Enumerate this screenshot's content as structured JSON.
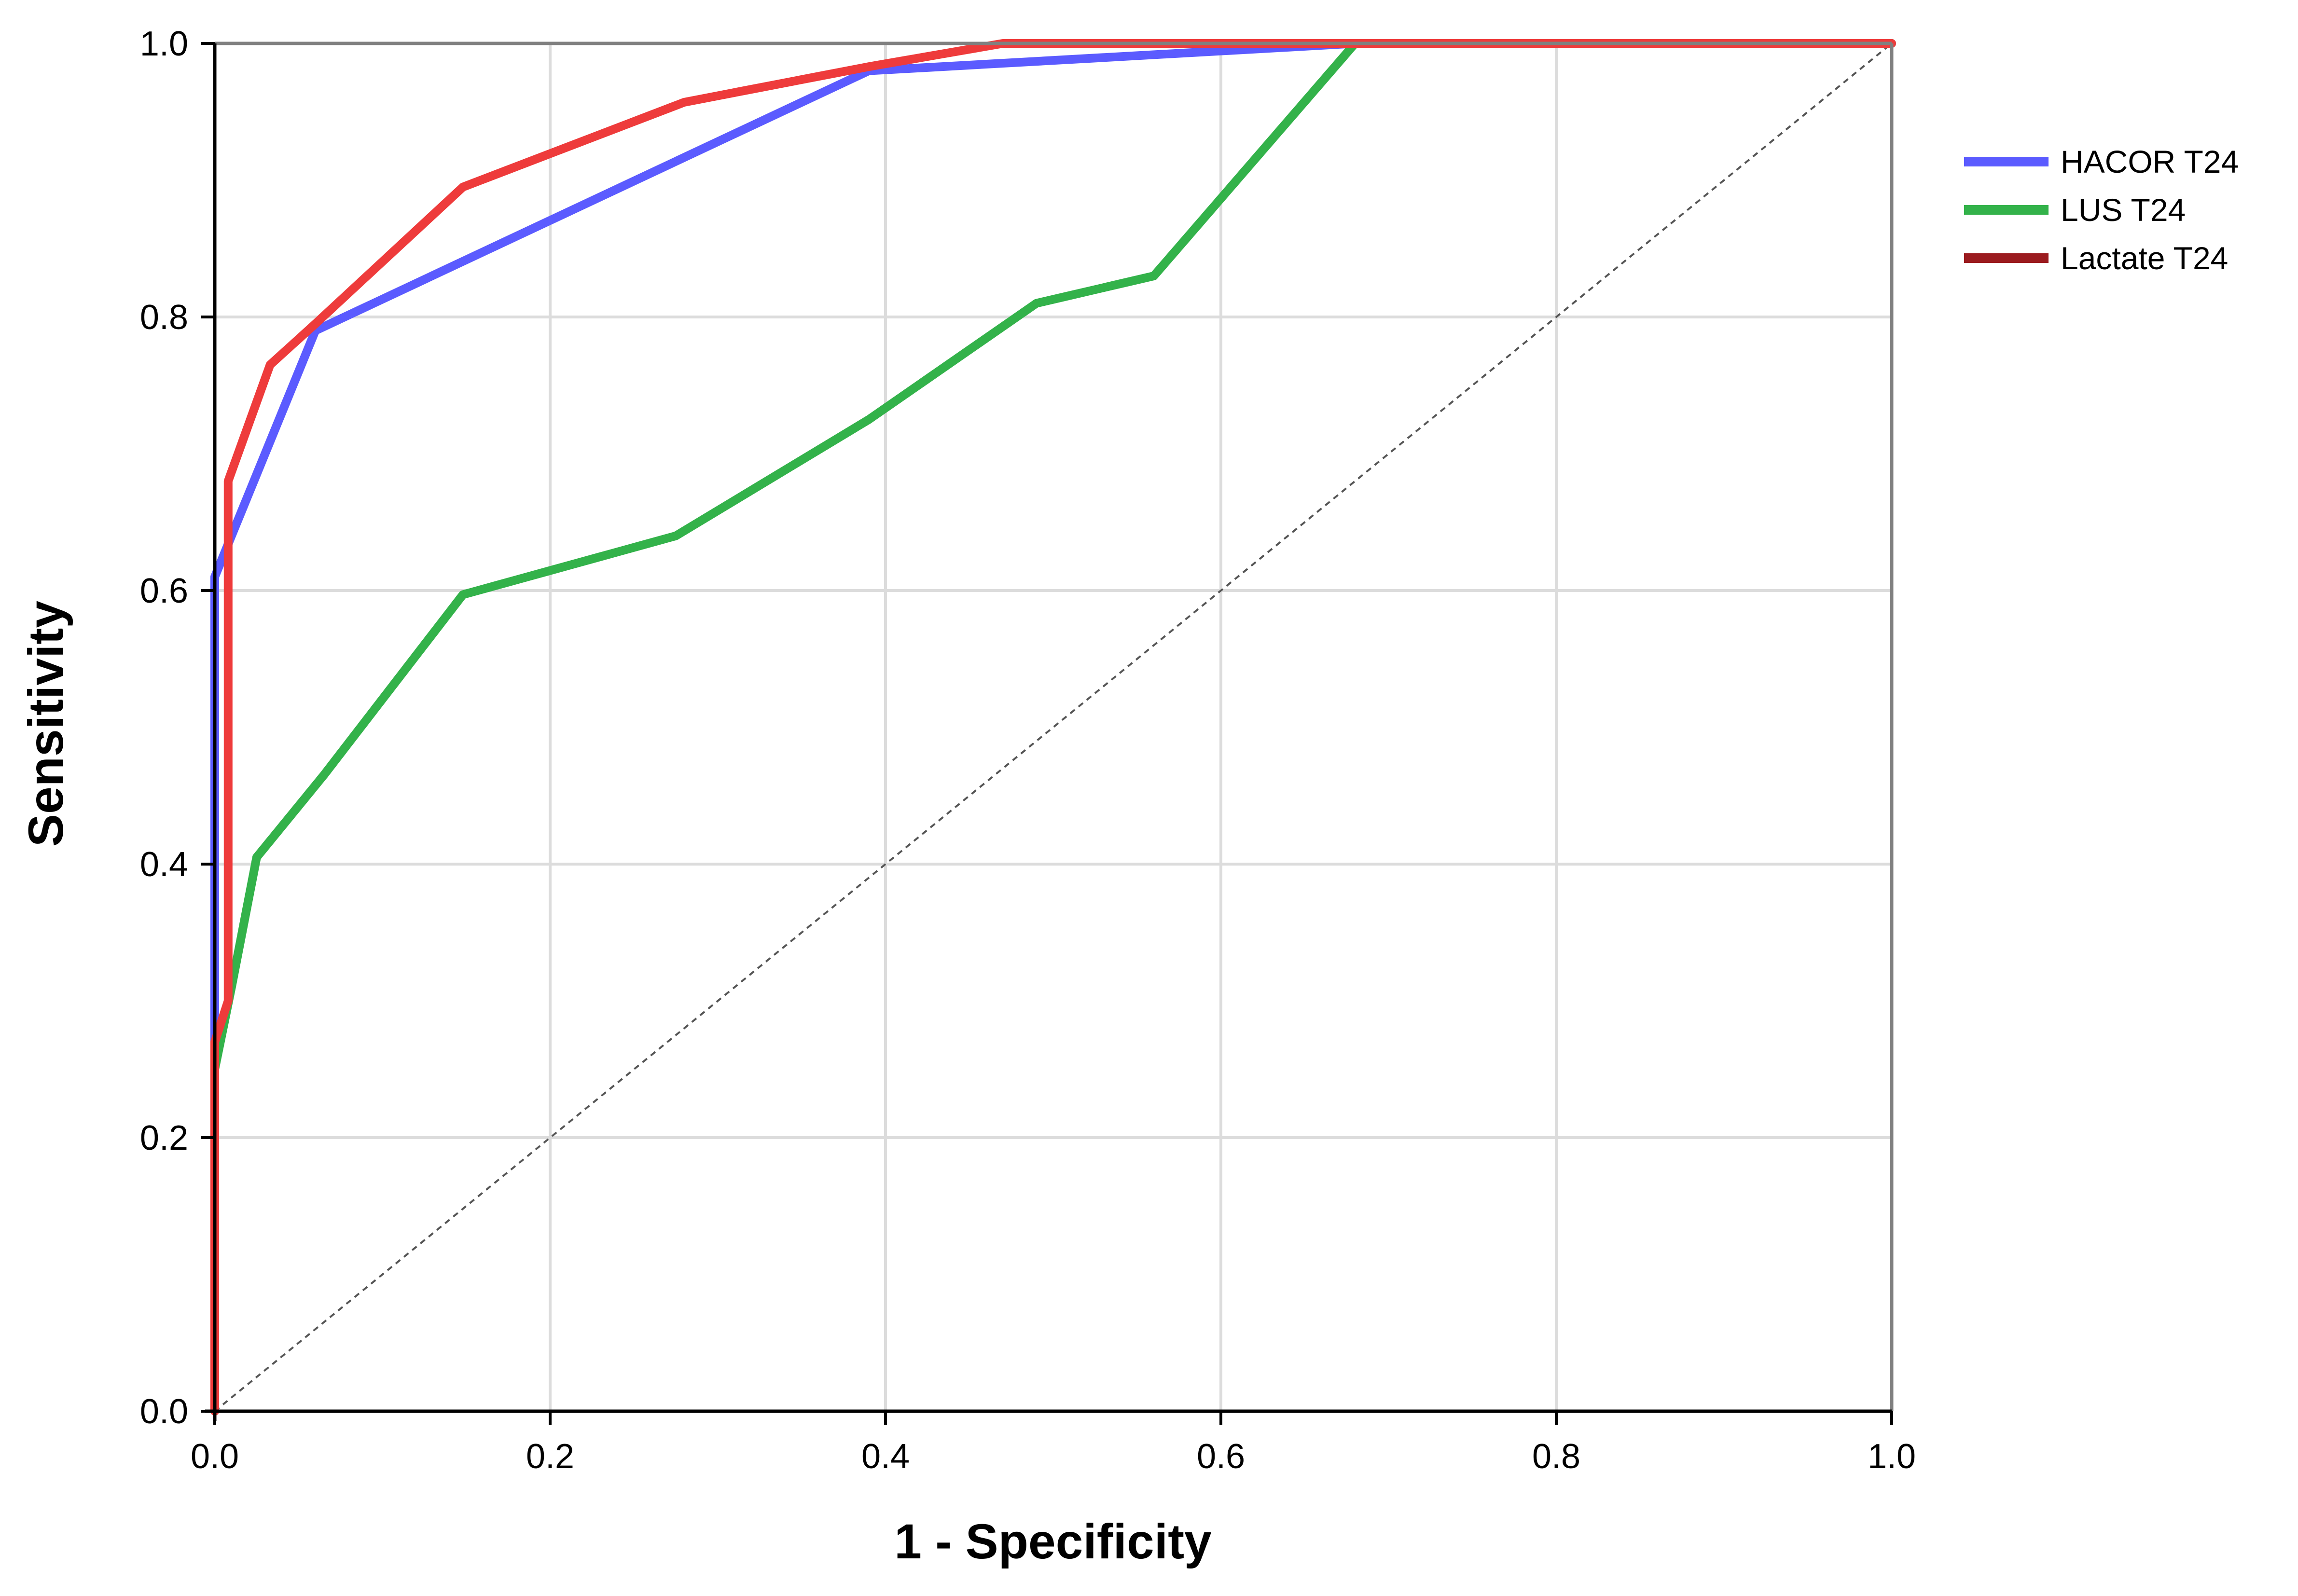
{
  "chart_data": {
    "type": "line",
    "xlabel": "1 - Specificity",
    "ylabel": "Sensitivity",
    "xlim": [
      0,
      1
    ],
    "ylim": [
      0,
      1
    ],
    "xticks": [
      "0.0",
      "0.2",
      "0.4",
      "0.6",
      "0.8",
      "1.0"
    ],
    "yticks": [
      "0.0",
      "0.2",
      "0.4",
      "0.6",
      "0.8",
      "1.0"
    ],
    "grid": true,
    "legend_position": "top-right, outside plot area",
    "reference_line": {
      "style": "dashed",
      "color": "#555555",
      "x": [
        0,
        1
      ],
      "y": [
        0,
        1
      ]
    },
    "series": [
      {
        "name": "HACOR T24",
        "color": "#5b5bff",
        "x": [
          0.0,
          0.0,
          0.06,
          0.39,
          0.68,
          1.0
        ],
        "y": [
          0.0,
          0.61,
          0.79,
          0.98,
          1.0,
          1.0
        ]
      },
      {
        "name": "LUS T24",
        "color": "#33b24a",
        "x": [
          0.0,
          0.0,
          0.01,
          0.025,
          0.065,
          0.148,
          0.275,
          0.39,
          0.49,
          0.56,
          0.68,
          1.0
        ],
        "y": [
          0.0,
          0.25,
          0.31,
          0.405,
          0.465,
          0.597,
          0.64,
          0.725,
          0.81,
          0.83,
          1.0,
          1.0
        ]
      },
      {
        "name": "Lactate T24",
        "color": "#ee3b3b",
        "legend_color": "#9b1b1f",
        "x": [
          0.0,
          0.0,
          0.008,
          0.008,
          0.033,
          0.06,
          0.148,
          0.28,
          0.39,
          0.47,
          1.0
        ],
        "y": [
          0.0,
          0.27,
          0.3,
          0.68,
          0.765,
          0.795,
          0.895,
          0.957,
          0.983,
          1.0,
          1.0
        ]
      }
    ]
  }
}
